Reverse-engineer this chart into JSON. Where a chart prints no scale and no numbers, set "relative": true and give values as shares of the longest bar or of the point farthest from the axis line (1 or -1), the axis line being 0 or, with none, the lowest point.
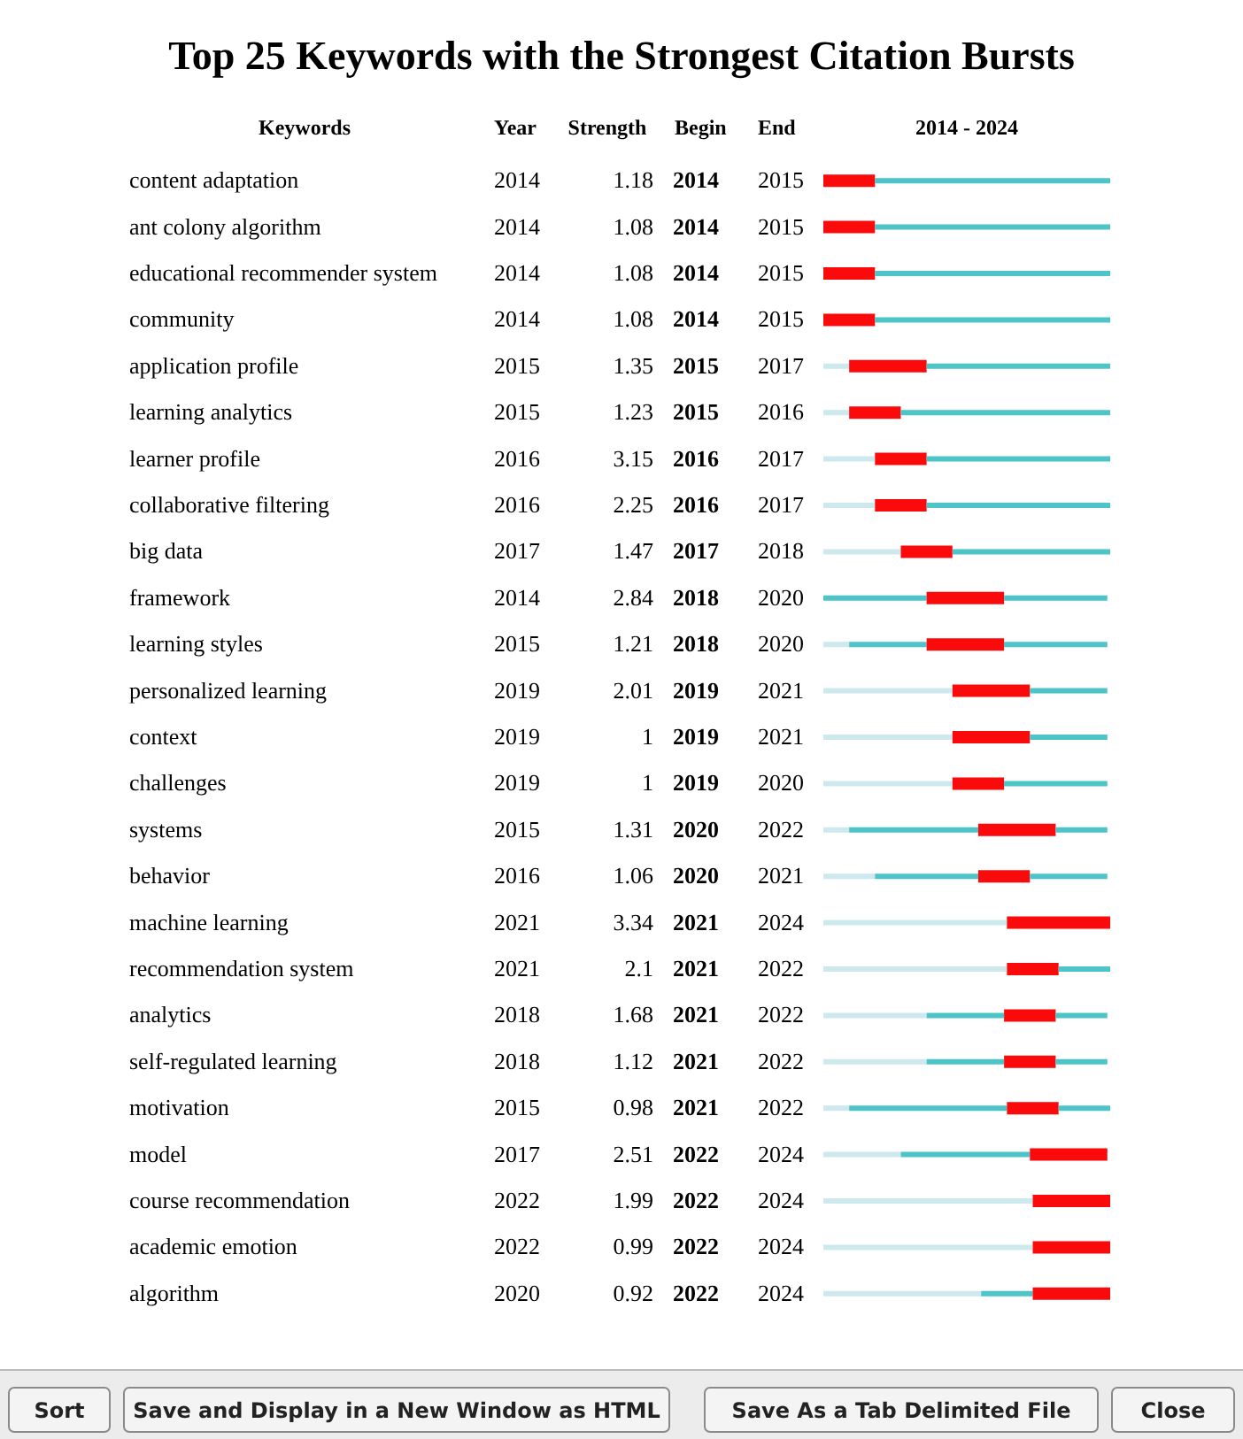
{
  "chart_data": {
    "type": "bar",
    "orientation": "horizontal",
    "stacked": true,
    "relative": true,
    "title": "Top 25 Keywords with the Strongest Citation Bursts",
    "ylabel": "Keywords",
    "annotations": [
      "Year",
      "Strength",
      "Begin",
      "End",
      "2014 - 2024",
      "2014",
      "1.18",
      "2014",
      "2015",
      "2014",
      "1.08",
      "2014",
      "2015",
      "2014",
      "1.08",
      "2014",
      "2015",
      "2014",
      "1.08",
      "2014",
      "2015",
      "2015",
      "1.35",
      "2015",
      "2017",
      "2015",
      "1.23",
      "2015",
      "2016",
      "2016",
      "3.15",
      "2016",
      "2017",
      "2016",
      "2.25",
      "2016",
      "2017",
      "2017",
      "1.47",
      "2017",
      "2018",
      "2014",
      "2.84",
      "2018",
      "2020",
      "2015",
      "1.21",
      "2018",
      "2020",
      "2019",
      "2.01",
      "2019",
      "2021",
      "2019",
      "1",
      "2019",
      "2021",
      "2019",
      "1",
      "2019",
      "2020",
      "2015",
      "1.31",
      "2020",
      "2022",
      "2016",
      "1.06",
      "2020",
      "2021",
      "2021",
      "3.34",
      "2021",
      "2024",
      "2021",
      "2.1",
      "2021",
      "2022",
      "2018",
      "1.68",
      "2021",
      "2022",
      "2018",
      "1.12",
      "2021",
      "2022",
      "2015",
      "0.98",
      "2021",
      "2022",
      "2017",
      "2.51",
      "2022",
      "2024",
      "2022",
      "1.99",
      "2022",
      "2024",
      "2022",
      "0.99",
      "2022",
      "2024",
      "2020",
      "0.92",
      "2022",
      "2024",
      "Sort",
      "Save and Display in a New Window as HTML",
      "Save As a Tab Delimited File",
      "Close"
    ],
    "categories": [
      "content adaptation",
      "ant colony algorithm",
      "educational recommender system",
      "community",
      "application profile",
      "learning analytics",
      "learner profile",
      "collaborative filtering",
      "big data",
      "framework",
      "learning styles",
      "personalized learning",
      "context",
      "challenges",
      "systems",
      "behavior",
      "machine learning",
      "recommendation system",
      "analytics",
      "self-regulated learning",
      "motivation",
      "model",
      "course recommendation",
      "academic emotion",
      "algorithm"
    ],
    "legend": false,
    "series": [
      {
        "color": "#cde9ee",
        "values": [
          0,
          0,
          0,
          0,
          0.09,
          0.09,
          0.18,
          0.18,
          0.27,
          0,
          0.09,
          0.45,
          0.45,
          0.45,
          0.09,
          0.18,
          0.64,
          0.64,
          0.36,
          0.36,
          0.09,
          0.27,
          0.73,
          0.73,
          0.55
        ]
      },
      {
        "color": "#4cc4c8",
        "values": [
          0,
          0,
          0,
          0,
          0,
          0,
          0,
          0,
          0,
          0.36,
          0.27,
          0,
          0,
          0,
          0.45,
          0.36,
          0,
          0,
          0.27,
          0.27,
          0.55,
          0.45,
          0,
          0,
          0.18
        ]
      },
      {
        "color": "#fa0a0a",
        "values": [
          0.18,
          0.18,
          0.18,
          0.18,
          0.27,
          0.18,
          0.18,
          0.18,
          0.18,
          0.27,
          0.27,
          0.27,
          0.27,
          0.18,
          0.27,
          0.18,
          0.36,
          0.18,
          0.18,
          0.18,
          0.18,
          0.27,
          0.27,
          0.27,
          0.27
        ]
      },
      {
        "color": "#4cc4c8",
        "values": [
          0.82,
          0.82,
          0.82,
          0.82,
          0.64,
          0.73,
          0.64,
          0.64,
          0.55,
          0.36,
          0.36,
          0.27,
          0.27,
          0.36,
          0.18,
          0.27,
          0,
          0.18,
          0.18,
          0.18,
          0.18,
          0,
          0,
          0,
          0
        ]
      }
    ]
  }
}
